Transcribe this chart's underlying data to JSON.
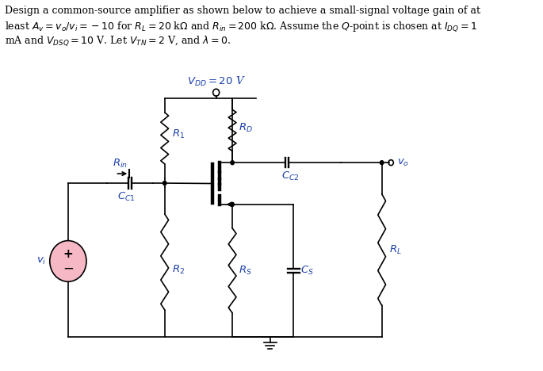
{
  "vdd_label": "$V_{DD} = 20$ V",
  "r1_label": "$R_1$",
  "r2_label": "$R_2$",
  "rd_label": "$R_D$",
  "rl_label": "$R_L$",
  "rs_label": "$R_S$",
  "cs_label": "$C_S$",
  "cc1_label": "$C_{C1}$",
  "cc2_label": "$C_{C2}$",
  "rin_label": "$R_{in}$",
  "vi_label": "$v_i$",
  "vo_label": "$v_o$",
  "text_color": "#1a3faa",
  "line_color": "#000000",
  "source_fill": "#f5b8c4",
  "bg_color": "#ffffff",
  "line1": "Design a common-source amplifier as shown below to achieve a small-signal voltage gain of at",
  "line2": "least $A_v = v_o/v_i = -10$ for $R_L = 20$ k$\\Omega$ and $R_{in} = 200$ k$\\Omega$. Assume the $Q$-point is chosen at $I_{DQ} = 1$",
  "line3": "mA and $V_{DSQ} = 10$ V. Let $V_{TN} = 2$ V, and $\\lambda = 0$."
}
